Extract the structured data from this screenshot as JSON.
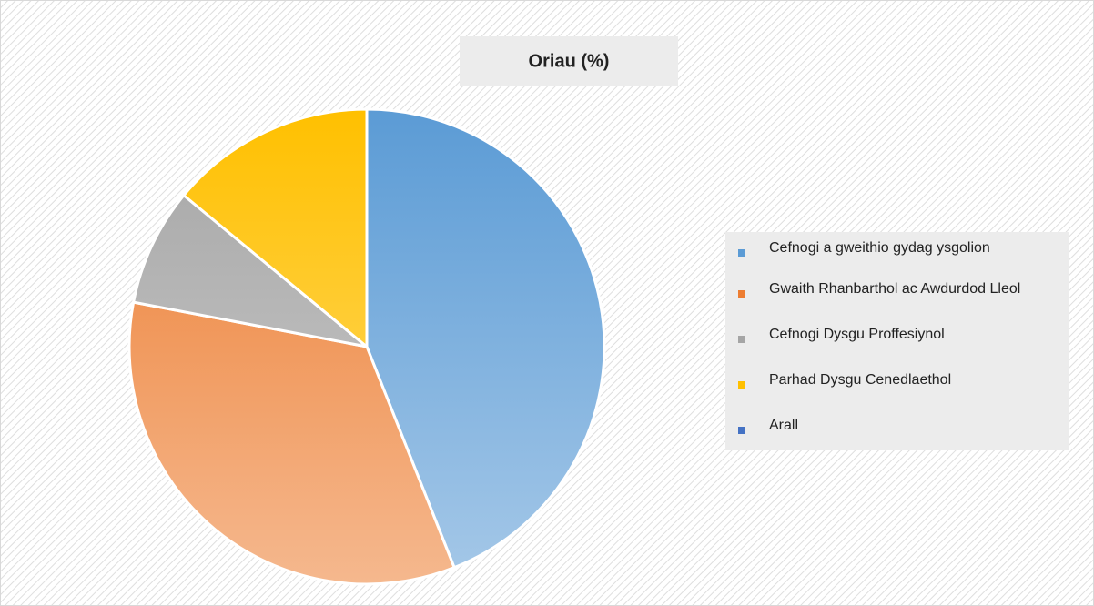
{
  "chart_data": {
    "type": "pie",
    "title": "Oriau (%)",
    "categories": [
      "Cefnogi a gweithio gydag ysgolion",
      "Gwaith Rhanbarthol ac Awdurdod Lleol",
      "Cefnogi Dysgu Proffesiynol",
      "Parhad Dysgu Cenedlaethol",
      "Arall"
    ],
    "values": [
      44,
      34,
      8,
      14,
      0
    ],
    "colors": [
      "#5b9bd5",
      "#ed7d31",
      "#a5a5a5",
      "#ffc000",
      "#4472c4"
    ],
    "legend": "right"
  }
}
